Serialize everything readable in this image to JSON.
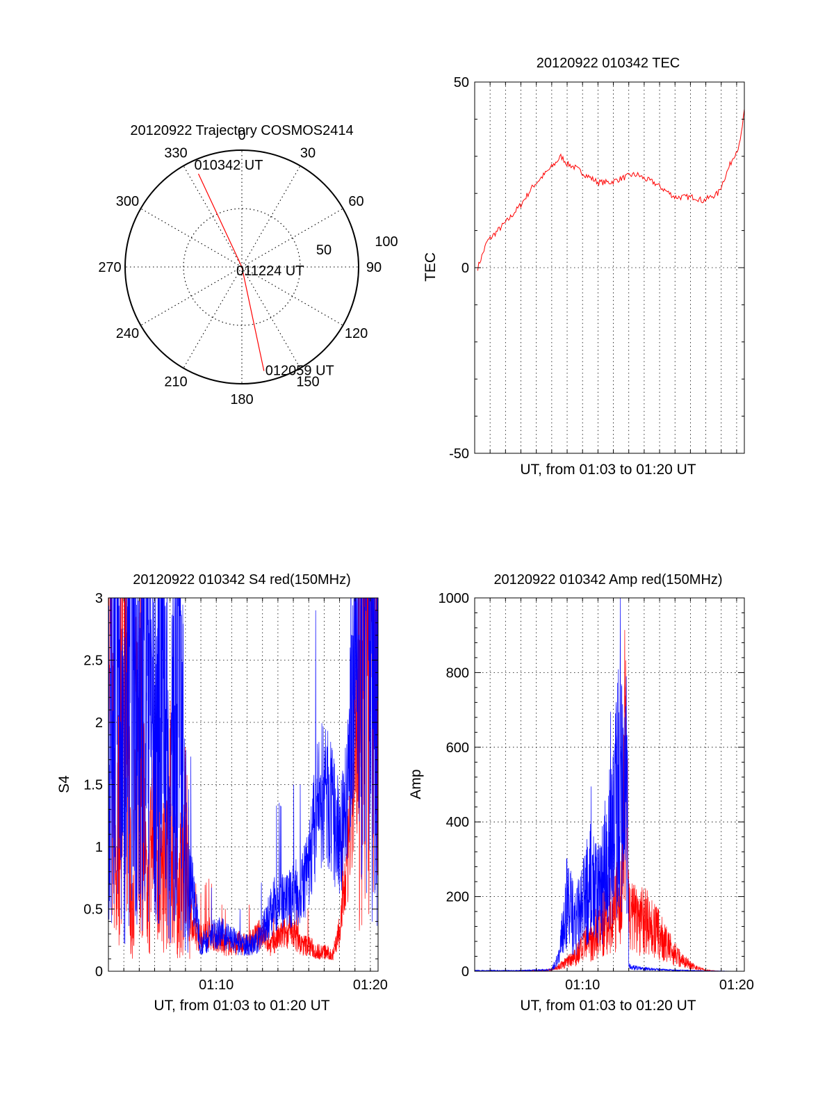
{
  "chart_data": [
    {
      "type": "polar",
      "title": "20120922 Trajectory COSMOS2414",
      "azimuth_labels": [
        "0",
        "30",
        "60",
        "90",
        "120",
        "150",
        "180",
        "210",
        "240",
        "270",
        "300",
        "330"
      ],
      "ring_labels": [
        "50",
        "100"
      ],
      "zenith_range": [
        0,
        100
      ],
      "trajectory": {
        "color": "#ff0000",
        "points": [
          {
            "azimuth": 335,
            "zenith": 88,
            "label": "010342 UT"
          },
          {
            "azimuth": 0,
            "zenith": 0,
            "label": "011224 UT"
          },
          {
            "azimuth": 168,
            "zenith": 91,
            "label": "012059 UT"
          }
        ]
      }
    },
    {
      "type": "line",
      "title": "20120922 010342 TEC",
      "xlabel": "UT, from 01:03 to 01:20 UT",
      "ylabel": "TEC",
      "xlim": [
        3.0,
        20.5
      ],
      "ylim": [
        -50,
        50
      ],
      "yticks": [
        "-50",
        "0",
        "50"
      ],
      "grid": true,
      "series": [
        {
          "color": "#ff0000",
          "x": [
            3.2,
            3.8,
            4.5,
            5.2,
            6.0,
            6.8,
            7.5,
            8.2,
            8.6,
            9.0,
            9.5,
            10.2,
            11.0,
            11.8,
            12.5,
            13.2,
            13.6,
            14.0,
            14.6,
            15.3,
            16.0,
            16.8,
            17.3,
            17.8,
            18.3,
            18.8,
            19.3,
            19.8,
            20.2,
            20.5
          ],
          "y": [
            0,
            7,
            10,
            13,
            17,
            22,
            25,
            28,
            30,
            28,
            27,
            25,
            23,
            23,
            24,
            25,
            25,
            24,
            23,
            21,
            19,
            19,
            19,
            18,
            19,
            20,
            25,
            30,
            33,
            42
          ]
        }
      ]
    },
    {
      "type": "line",
      "title": "20120922 010342 S4 red(150MHz)",
      "xlabel": "UT, from 01:03 to 01:20 UT",
      "ylabel": "S4",
      "xlim": [
        3.0,
        20.5
      ],
      "ylim": [
        0,
        3
      ],
      "yticks": [
        "0",
        "0.5",
        "1",
        "1.5",
        "2",
        "2.5",
        "3"
      ],
      "xticks": [
        "01:10",
        "01:20"
      ],
      "grid": true,
      "series": [
        {
          "color": "#ff0000",
          "x": [
            3.0,
            3.5,
            4.0,
            4.5,
            5.0,
            5.5,
            6.0,
            6.5,
            7.0,
            7.5,
            8.0,
            8.5,
            9.0,
            9.5,
            10.0,
            10.5,
            11.0,
            11.5,
            12.0,
            12.5,
            13.0,
            13.5,
            14.0,
            14.5,
            15.0,
            15.5,
            16.0,
            16.5,
            17.0,
            17.5,
            18.0,
            18.5,
            19.0,
            19.5,
            20.0,
            20.5
          ],
          "y": [
            2.5,
            0.5,
            2.8,
            0.3,
            2.2,
            0.4,
            1.3,
            0.6,
            1.1,
            0.5,
            0.9,
            0.3,
            0.25,
            0.3,
            0.25,
            0.2,
            0.2,
            0.22,
            0.2,
            0.25,
            0.3,
            0.2,
            0.25,
            0.3,
            0.3,
            0.2,
            0.2,
            0.15,
            0.15,
            0.12,
            0.3,
            0.8,
            1.5,
            2.5,
            2.8,
            3.0
          ]
        },
        {
          "color": "#0000ff",
          "x": [
            3.0,
            3.5,
            4.0,
            4.5,
            5.0,
            5.5,
            6.0,
            6.5,
            7.0,
            7.5,
            8.0,
            8.5,
            9.0,
            9.5,
            10.0,
            10.5,
            11.0,
            11.5,
            12.0,
            12.5,
            13.0,
            13.5,
            14.0,
            14.5,
            15.0,
            15.5,
            16.0,
            16.5,
            17.0,
            17.5,
            18.0,
            18.5,
            19.0,
            19.5,
            20.0,
            20.5
          ],
          "y": [
            1.8,
            2.6,
            1.2,
            2.9,
            1.6,
            2.7,
            1.4,
            2.8,
            1.0,
            2.6,
            0.9,
            0.6,
            0.2,
            0.25,
            0.3,
            0.28,
            0.25,
            0.2,
            0.2,
            0.2,
            0.3,
            0.45,
            0.55,
            0.5,
            0.6,
            0.6,
            0.8,
            1.2,
            1.4,
            1.2,
            1.0,
            1.3,
            2.5,
            2.9,
            2.7,
            2.2
          ]
        }
      ]
    },
    {
      "type": "line",
      "title": "20120922 010342 Amp red(150MHz)",
      "xlabel": "UT, from 01:03 to 01:20 UT",
      "ylabel": "Amp",
      "xlim": [
        3.0,
        20.5
      ],
      "ylim": [
        0,
        1000
      ],
      "yticks": [
        "0",
        "200",
        "400",
        "600",
        "800",
        "1000"
      ],
      "xticks": [
        "01:10",
        "01:20"
      ],
      "grid": true,
      "series": [
        {
          "color": "#ff0000",
          "x": [
            3.0,
            5.0,
            7.0,
            8.0,
            8.5,
            9.0,
            9.5,
            10.0,
            10.5,
            11.0,
            11.5,
            12.0,
            12.5,
            12.8,
            13.0,
            13.5,
            14.0,
            14.5,
            15.0,
            15.5,
            16.0,
            16.5,
            17.0,
            17.5,
            18.0,
            19.0,
            20.5
          ],
          "y": [
            0,
            0,
            2,
            5,
            15,
            30,
            50,
            70,
            100,
            130,
            160,
            190,
            220,
            790,
            180,
            170,
            160,
            140,
            110,
            80,
            55,
            35,
            20,
            10,
            3,
            0,
            0
          ]
        },
        {
          "color": "#0000ff",
          "x": [
            3.0,
            6.0,
            8.0,
            8.5,
            9.0,
            9.5,
            10.0,
            10.5,
            11.0,
            11.5,
            12.0,
            12.3,
            12.6,
            12.9,
            13.0,
            13.5,
            14.0,
            15.0,
            16.0,
            17.0,
            18.0,
            20.5
          ],
          "y": [
            2,
            2,
            5,
            50,
            230,
            150,
            200,
            280,
            230,
            330,
            420,
            590,
            520,
            580,
            15,
            10,
            8,
            5,
            3,
            2,
            1,
            0
          ]
        }
      ]
    }
  ]
}
